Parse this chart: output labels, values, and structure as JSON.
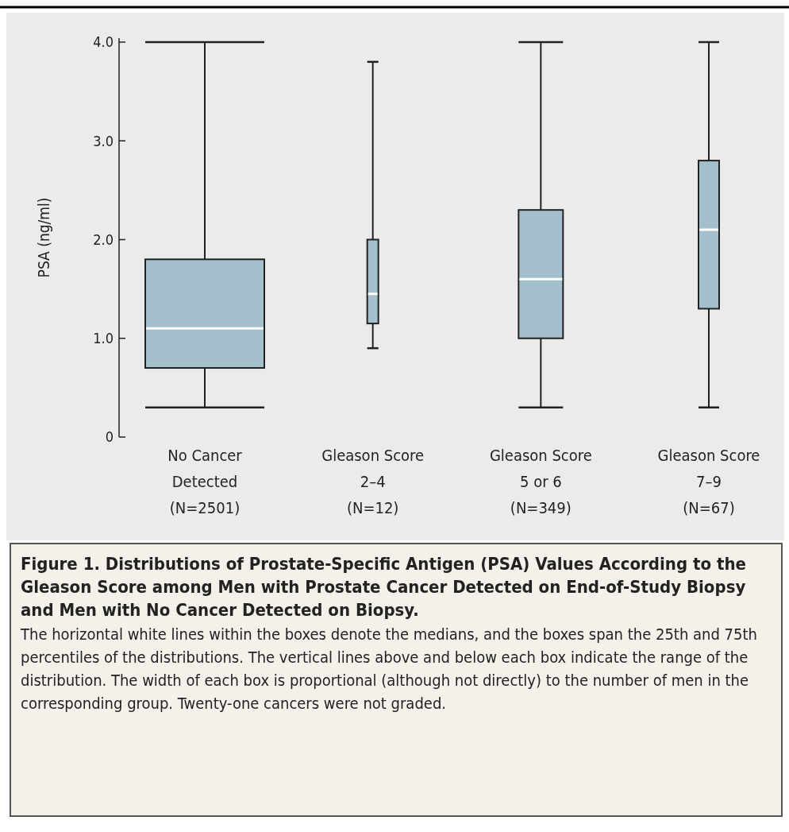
{
  "chart_data": {
    "type": "box",
    "title": "Figure 1. Distributions of Prostate-Specific Antigen (PSA) Values According to the Gleason Score among Men with Prostate Cancer Detected on End-of-Study Biopsy and Men with No Cancer Detected on Biopsy.",
    "ylabel": "PSA (ng/ml)",
    "categories": [
      "No Cancer\nDetected\n(N=2501)",
      "Gleason Score\n2–4\n(N=12)",
      "Gleason Score\n5 or 6\n(N=349)",
      "Gleason Score\n7–9\n(N=67)"
    ],
    "color": "#a3c0cc",
    "boxes": [
      {
        "low": 0.3,
        "q1": 0.7,
        "median": 1.1,
        "q3": 1.8,
        "high": 4.0
      },
      {
        "low": 0.9,
        "q1": 1.15,
        "median": 1.45,
        "q3": 2.0,
        "high": 3.8
      },
      {
        "low": 0.3,
        "q1": 1.0,
        "median": 1.6,
        "q3": 2.3,
        "high": 4.0
      },
      {
        "low": 0.3,
        "q1": 1.3,
        "median": 2.1,
        "q3": 2.8,
        "high": 4.0
      }
    ],
    "ylim": [
      0,
      4.04
    ],
    "yticks": [
      0,
      {
        "value": 1,
        "label": "1.0"
      },
      {
        "value": 2,
        "label": "2.0"
      },
      {
        "value": 3,
        "label": "3.0"
      },
      {
        "value": 4,
        "label": "4.0"
      }
    ],
    "grid": false,
    "annotations": [
      "The horizontal white lines within the boxes denote the medians, and the boxes span the 25th and 75th percentiles of the distributions. The vertical lines above and below each box indicate the range of the distribution. The width of each box is proportional (although not directly) to the number of men in the corresponding group. Twenty-one cancers were not graded."
    ]
  }
}
